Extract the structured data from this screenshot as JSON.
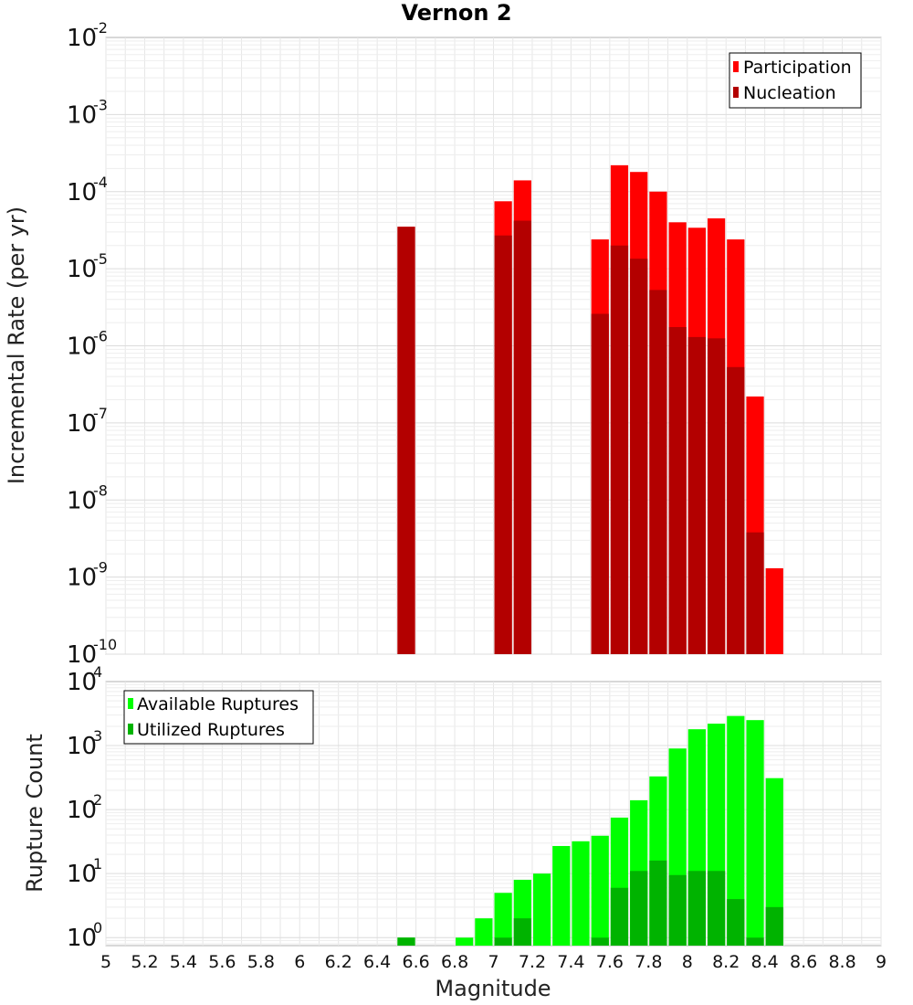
{
  "chart_data": [
    {
      "type": "bar",
      "title": "Vernon 2",
      "xlabel": "",
      "ylabel": "Incremental Rate (per yr)",
      "yscale": "log",
      "xlim": [
        5,
        9
      ],
      "ylim": [
        1e-10,
        0.01
      ],
      "ytick_exponents": [
        "-10",
        "-9",
        "-8",
        "-7",
        "-6",
        "-5",
        "-4",
        "-3",
        "-2"
      ],
      "ytick_base": "10",
      "grid": true,
      "legend_position": "top-right",
      "bar_width": 0.1,
      "x": [
        6.55,
        7.05,
        7.15,
        7.55,
        7.65,
        7.75,
        7.85,
        7.95,
        8.05,
        8.15,
        8.25,
        8.35,
        8.45
      ],
      "series": [
        {
          "name": "Participation",
          "color": "#ff0000",
          "values": [
            3.5e-05,
            7.5e-05,
            0.00014,
            2.4e-05,
            0.00022,
            0.00018,
            0.0001,
            4e-05,
            3.4e-05,
            4.5e-05,
            2.4e-05,
            2.2e-07,
            1.3e-09
          ]
        },
        {
          "name": "Nucleation",
          "color": "#b30000",
          "values": [
            3.5e-05,
            2.7e-05,
            4.2e-05,
            2.6e-06,
            2e-05,
            1.35e-05,
            5.3e-06,
            1.75e-06,
            1.3e-06,
            1.25e-06,
            5.3e-07,
            3.8e-09,
            null
          ]
        }
      ]
    },
    {
      "type": "bar",
      "title": "",
      "xlabel": "Magnitude",
      "ylabel": "Rupture Count",
      "yscale": "log",
      "xlim": [
        5,
        9
      ],
      "ylim": [
        0.75,
        10000
      ],
      "xticks": [
        "5",
        "5.2",
        "5.4",
        "5.6",
        "5.8",
        "6",
        "6.2",
        "6.4",
        "6.6",
        "6.8",
        "7",
        "7.2",
        "7.4",
        "7.6",
        "7.8",
        "8",
        "8.2",
        "8.4",
        "8.6",
        "8.8",
        "9"
      ],
      "ytick_exponents": [
        "0",
        "1",
        "2",
        "3",
        "4"
      ],
      "ytick_base": "10",
      "grid": true,
      "legend_position": "top-left",
      "bar_width": 0.1,
      "x": [
        6.55,
        6.85,
        6.95,
        7.05,
        7.15,
        7.25,
        7.35,
        7.45,
        7.55,
        7.65,
        7.75,
        7.85,
        7.95,
        8.05,
        8.15,
        8.25,
        8.35,
        8.45
      ],
      "series": [
        {
          "name": "Available Ruptures",
          "color": "#00ff00",
          "values": [
            1,
            1,
            2,
            5,
            8,
            10,
            27,
            32,
            39,
            75,
            140,
            330,
            900,
            1800,
            2200,
            2900,
            2500,
            310
          ]
        },
        {
          "name": "Utilized Ruptures",
          "color": "#00b300",
          "values": [
            1,
            null,
            null,
            1,
            2,
            null,
            null,
            null,
            1,
            6,
            11,
            16,
            9.5,
            11,
            11,
            4,
            1,
            3
          ]
        }
      ]
    }
  ]
}
